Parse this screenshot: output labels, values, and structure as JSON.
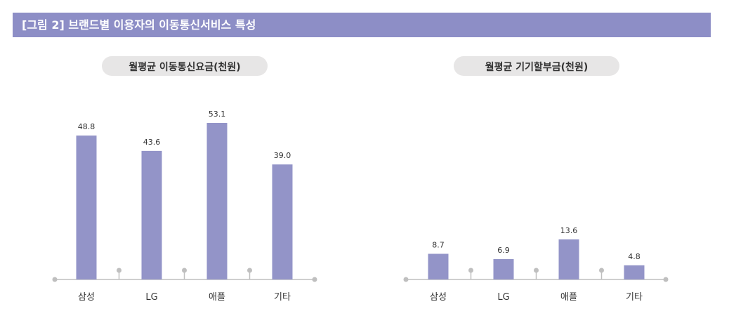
{
  "figure_title": "[그림 2]  브랜드별 이용자의 이동통신서비스 특성",
  "colors": {
    "title_bar": "#8d8ec6",
    "bar": "#9394c8",
    "pill": "#e7e6e6",
    "axis": "#bfbfbf"
  },
  "chart_data": [
    {
      "type": "bar",
      "title": "월평균 이동통신요금(천원)",
      "categories": [
        "삼성",
        "LG",
        "애플",
        "기타"
      ],
      "values": [
        48.8,
        43.6,
        53.1,
        39.0
      ],
      "value_labels": [
        "48.8",
        "43.6",
        "53.1",
        "39.0"
      ],
      "xlabel": "",
      "ylabel": "",
      "ylim": [
        0,
        60
      ],
      "grid": false
    },
    {
      "type": "bar",
      "title": "월평균 기기할부금(천원)",
      "categories": [
        "삼성",
        "LG",
        "애플",
        "기타"
      ],
      "values": [
        8.7,
        6.9,
        13.6,
        4.8
      ],
      "value_labels": [
        "8.7",
        "6.9",
        "13.6",
        "4.8"
      ],
      "xlabel": "",
      "ylabel": "",
      "ylim": [
        0,
        60
      ],
      "grid": false
    }
  ]
}
